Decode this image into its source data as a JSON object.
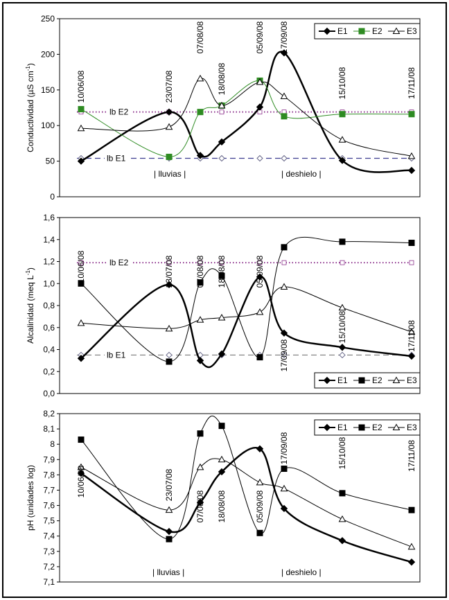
{
  "chart_data": [
    {
      "type": "line",
      "ylabel": "Conductividad (µS cm",
      "ylabel_sup": "-1",
      "ylabel_end": ")",
      "ylim": [
        0,
        250
      ],
      "yticks": [
        0,
        50,
        100,
        150,
        200,
        250
      ],
      "ytick_labels": [
        "0",
        "50",
        "100",
        "150",
        "200",
        "250"
      ],
      "x": [
        0,
        1,
        2,
        3,
        4,
        5,
        6,
        7
      ],
      "x_labels": [
        "10/06/08",
        "23/07/08",
        "07/08/08",
        "18/08/08",
        "05/09/08",
        "17/09/08",
        "15/10/08",
        "17/11/08"
      ],
      "series": [
        {
          "name": "E1",
          "color": "#000000",
          "marker": "diamond",
          "width": 2.5,
          "values": [
            50,
            119,
            58,
            77,
            126,
            202,
            51,
            37
          ]
        },
        {
          "name": "E2",
          "color": "#2e8b22",
          "marker": "square",
          "width": 1,
          "values": [
            123,
            56,
            119,
            128,
            163,
            113,
            116,
            116
          ]
        },
        {
          "name": "E3",
          "color": "#000000",
          "marker": "triangle",
          "width": 1,
          "values": [
            96,
            98,
            166,
            128,
            161,
            141,
            80,
            57
          ]
        }
      ],
      "reference_lines": [
        {
          "label": "lb E2",
          "value": 119,
          "color": "#8b2f8b",
          "style": "dotted"
        },
        {
          "label": "lb E1",
          "value": 54,
          "color": "#3b3b8f",
          "style": "dashed"
        }
      ],
      "annotations": [
        "| lluvias |",
        "| deshielo |"
      ],
      "legend": "top-right"
    },
    {
      "type": "line",
      "ylabel": "Alcalinidad  (meq L",
      "ylabel_sup": "-1",
      "ylabel_end": ")",
      "ylim": [
        0,
        1.6
      ],
      "yticks": [
        0,
        0.2,
        0.4,
        0.6,
        0.8,
        1.0,
        1.2,
        1.4,
        1.6
      ],
      "ytick_labels": [
        "0,0",
        "0,2",
        "0,4",
        "0,6",
        "0,8",
        "1,0",
        "1,2",
        "1,4",
        "1,6"
      ],
      "x": [
        0,
        1,
        2,
        3,
        4,
        5,
        6,
        7
      ],
      "x_labels": [
        "10/06/08",
        "23/07/08",
        "07/08/08",
        "18/08/08",
        "05/09/08",
        "17/09/08",
        "15/10/08",
        "17/11/08"
      ],
      "series": [
        {
          "name": "E1",
          "color": "#000000",
          "marker": "diamond",
          "width": 2.5,
          "values": [
            0.32,
            0.99,
            0.3,
            0.36,
            1.06,
            0.55,
            0.42,
            0.34
          ]
        },
        {
          "name": "E2",
          "color": "#000000",
          "marker": "square",
          "width": 1,
          "values": [
            1.0,
            0.29,
            1.01,
            1.07,
            0.33,
            1.33,
            1.38,
            1.37
          ]
        },
        {
          "name": "E3",
          "color": "#000000",
          "marker": "triangle",
          "width": 1,
          "values": [
            0.64,
            0.59,
            0.67,
            0.69,
            0.74,
            0.97,
            0.78,
            0.56
          ]
        }
      ],
      "reference_lines": [
        {
          "label": "lb E2",
          "value": 1.19,
          "color": "#8b2f8b",
          "style": "dotted"
        },
        {
          "label": "lb E1",
          "value": 0.35,
          "color": "#777777",
          "style": "dashed"
        }
      ],
      "legend": "bottom-right"
    },
    {
      "type": "line",
      "ylabel": "pH (unidades log)",
      "ylim": [
        7.1,
        8.2
      ],
      "yticks": [
        7.1,
        7.2,
        7.3,
        7.4,
        7.5,
        7.6,
        7.7,
        7.8,
        7.9,
        8.0,
        8.1,
        8.2
      ],
      "ytick_labels": [
        "7,1",
        "7,2",
        "7,3",
        "7,4",
        "7,5",
        "7,6",
        "7,7",
        "7,8",
        "7,9",
        "8",
        "8,1",
        "8,2"
      ],
      "x": [
        0,
        1,
        2,
        3,
        4,
        5,
        6,
        7
      ],
      "x_labels": [
        "10/06/08",
        "23/07/08",
        "07/08/08",
        "18/08/08",
        "05/09/08",
        "17/09/08",
        "15/10/08",
        "17/11/08"
      ],
      "series": [
        {
          "name": "E1",
          "color": "#000000",
          "marker": "diamond",
          "width": 2.5,
          "values": [
            7.81,
            7.43,
            7.62,
            7.82,
            7.97,
            7.58,
            7.37,
            7.23
          ]
        },
        {
          "name": "E2",
          "color": "#000000",
          "marker": "square",
          "width": 1,
          "values": [
            8.03,
            7.38,
            8.07,
            8.12,
            7.42,
            7.84,
            7.68,
            7.57
          ]
        },
        {
          "name": "E3",
          "color": "#000000",
          "marker": "triangle",
          "width": 1,
          "values": [
            7.85,
            7.57,
            7.85,
            7.9,
            7.75,
            7.71,
            7.51,
            7.33
          ]
        }
      ],
      "annotations": [
        "| lluvias |",
        "| deshielo |"
      ],
      "legend": "top-right"
    }
  ]
}
